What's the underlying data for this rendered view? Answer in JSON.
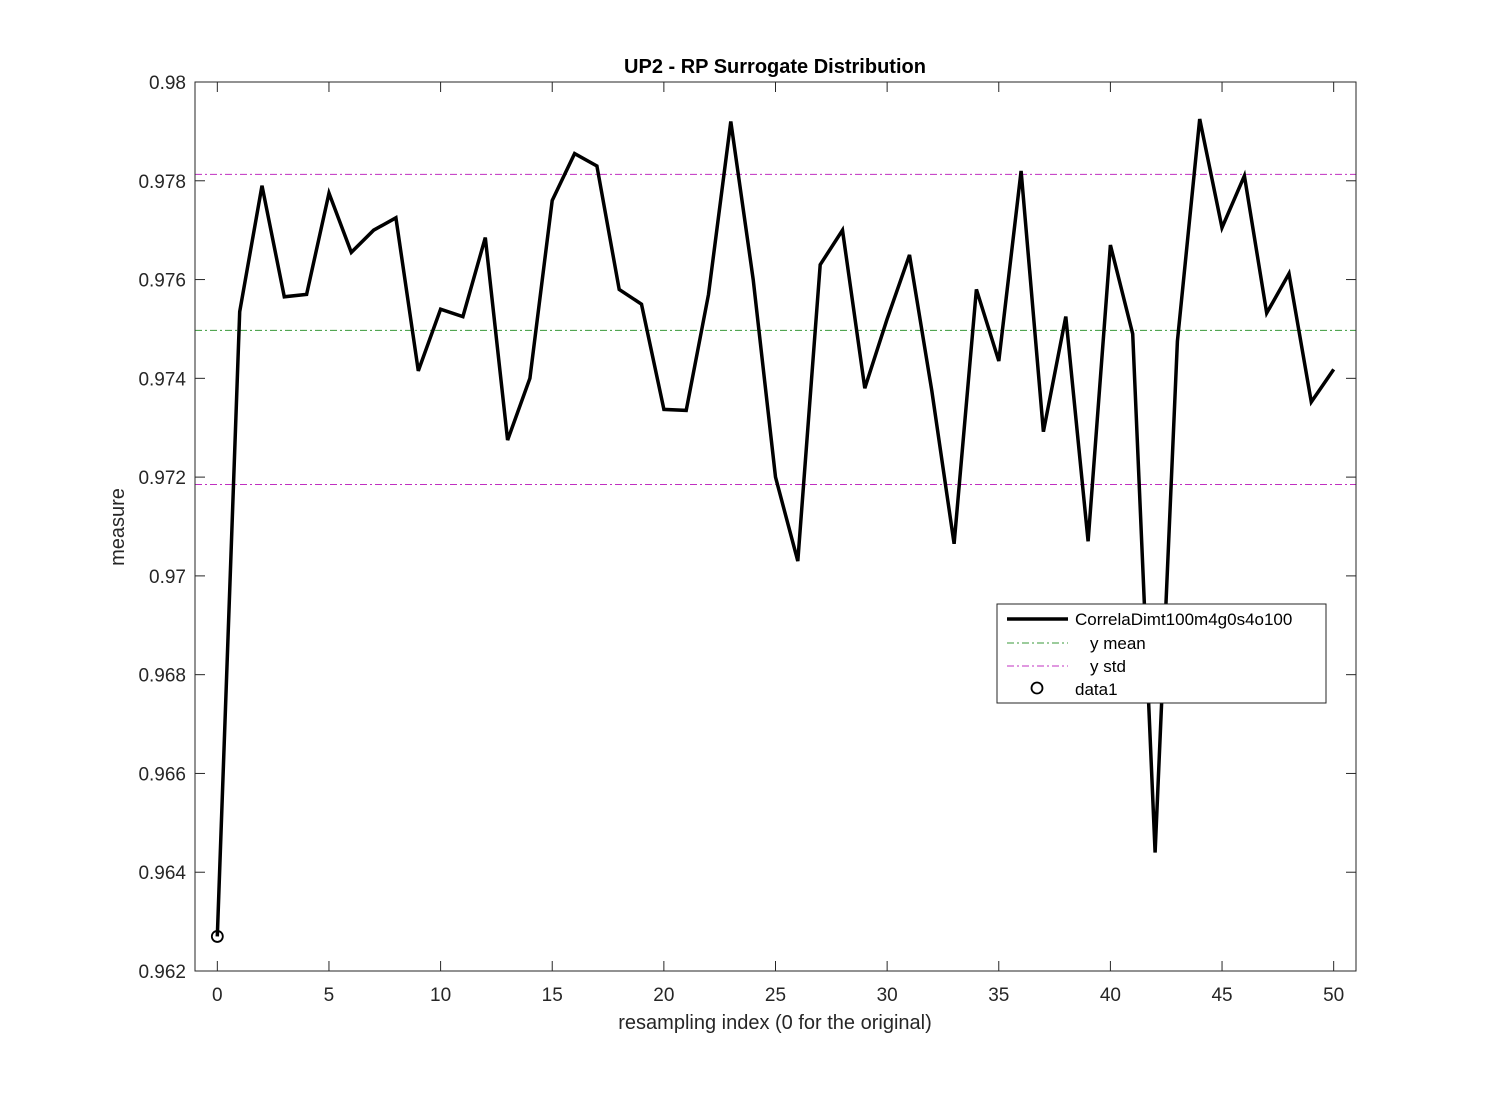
{
  "chart_data": {
    "type": "line",
    "title": "UP2 - RP Surrogate Distribution",
    "xlabel": "resampling index (0 for the original)",
    "ylabel": "measure",
    "xlim": [
      -1,
      51
    ],
    "ylim": [
      0.962,
      0.98
    ],
    "xticks": [
      0,
      5,
      10,
      15,
      20,
      25,
      30,
      35,
      40,
      45,
      50
    ],
    "xtick_labels": [
      "0",
      "5",
      "10",
      "15",
      "20",
      "25",
      "30",
      "35",
      "40",
      "45",
      "50"
    ],
    "yticks": [
      0.962,
      0.964,
      0.966,
      0.968,
      0.97,
      0.972,
      0.974,
      0.976,
      0.978,
      0.98
    ],
    "ytick_labels": [
      "0.962",
      "0.964",
      "0.966",
      "0.968",
      "0.97",
      "0.972",
      "0.974",
      "0.976",
      "0.978",
      "0.98"
    ],
    "grid": false,
    "legend_position": "center-right",
    "series": [
      {
        "name": "CorrelaDimt100m4g0s4o100",
        "style": "solid",
        "color": "#000000",
        "x": [
          0,
          1,
          2,
          3,
          4,
          5,
          6,
          7,
          8,
          9,
          10,
          11,
          12,
          13,
          14,
          15,
          16,
          17,
          18,
          19,
          20,
          21,
          22,
          23,
          24,
          25,
          26,
          27,
          28,
          29,
          30,
          31,
          32,
          33,
          34,
          35,
          36,
          37,
          38,
          39,
          40,
          41,
          42,
          43,
          44,
          45,
          46,
          47,
          48,
          49,
          50
        ],
        "y": [
          0.9627,
          0.97535,
          0.9779,
          0.97565,
          0.9757,
          0.97775,
          0.97655,
          0.977,
          0.97725,
          0.97415,
          0.9754,
          0.97525,
          0.97685,
          0.97275,
          0.974,
          0.9776,
          0.97855,
          0.9783,
          0.9758,
          0.9755,
          0.97337,
          0.97335,
          0.9757,
          0.9792,
          0.976,
          0.972,
          0.9703,
          0.9763,
          0.977,
          0.9738,
          0.9752,
          0.9765,
          0.97375,
          0.97065,
          0.9758,
          0.97435,
          0.9782,
          0.97292,
          0.97525,
          0.9707,
          0.9767,
          0.9749,
          0.9644,
          0.97475,
          0.97925,
          0.97705,
          0.9781,
          0.97532,
          0.97612,
          0.97352,
          0.97418
        ]
      },
      {
        "name": "y mean",
        "style": "dash-dot",
        "color": "#3a9a3a",
        "y_constant": 0.97497
      },
      {
        "name": "y std",
        "style": "dash-dot",
        "color": "#c030c0",
        "y_constant": [
          0.97813,
          0.97185
        ]
      },
      {
        "name": "data1",
        "style": "marker-circle",
        "color": "#000000",
        "x": [
          0
        ],
        "y": [
          0.9627
        ]
      }
    ]
  }
}
